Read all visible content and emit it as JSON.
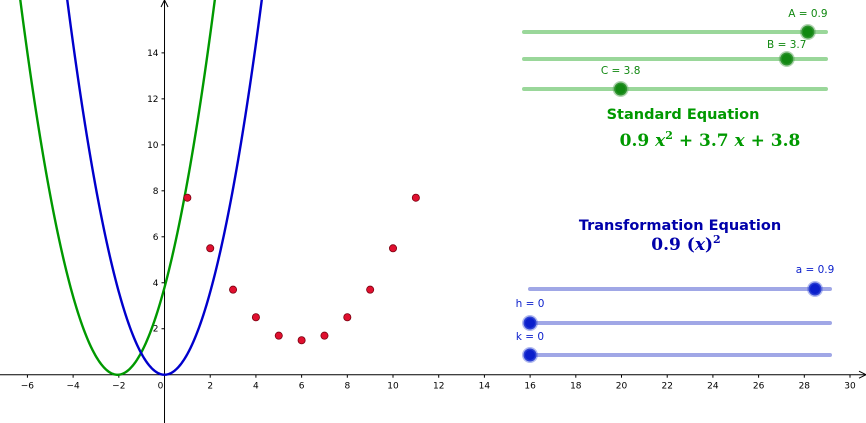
{
  "graph": {
    "x_ticks": [
      -6,
      -4,
      -2,
      0,
      2,
      4,
      6,
      8,
      10,
      12,
      14,
      16,
      18,
      20,
      22,
      24,
      26,
      28,
      30
    ],
    "y_ticks": [
      2,
      4,
      6,
      8,
      10,
      12,
      14
    ],
    "x_range": [
      -7.2,
      30.7
    ],
    "y_range": [
      -2.1,
      16.3
    ],
    "standard_curve": {
      "a": 0.9,
      "b": 3.7,
      "c": 3.8,
      "color": "#009900"
    },
    "transformed_curve": {
      "a": 0.9,
      "h": 0,
      "k": 0,
      "color": "#0000cc"
    },
    "points": {
      "color": "#e0102f",
      "x": [
        1,
        2,
        3,
        4,
        5,
        6,
        7,
        8,
        9,
        10,
        11
      ],
      "y": [
        7.7,
        5.5,
        3.7,
        2.5,
        1.7,
        1.5,
        1.7,
        2.5,
        3.7,
        5.5,
        7.7
      ]
    }
  },
  "standard_sliders": [
    {
      "label": "A = 0.9",
      "value_fraction": 0.94
    },
    {
      "label": "B = 3.7",
      "value_fraction": 0.87
    },
    {
      "label": "C = 3.8",
      "value_fraction": 0.32
    }
  ],
  "standard_color": "#009900",
  "standard_track_color": "#9ad79a",
  "standard_heading": "Standard Equation",
  "standard_equation": {
    "coef_a": "0.9",
    "var": "x",
    "exp": "2",
    "rest": "+ 3.7",
    "var2": "x",
    "tail": "+ 3.8"
  },
  "transform_color": "#0000aa",
  "transform_track_color": "#a0a7e6",
  "transform_heading": "Transformation Equation",
  "transform_equation": {
    "coef": "0.9",
    "open": "(",
    "var": "x",
    "close": ")",
    "exp": "2"
  },
  "transform_sliders": [
    {
      "label": "a = 0.9",
      "value_fraction": 0.95
    },
    {
      "label": "h = 0",
      "value_fraction": 0.0
    },
    {
      "label": "k = 0",
      "value_fraction": 0.0
    }
  ]
}
